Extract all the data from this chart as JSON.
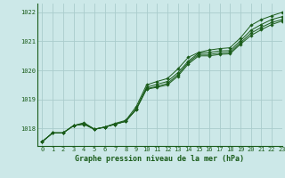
{
  "title": "Graphe pression niveau de la mer (hPa)",
  "background_color": "#cce8e8",
  "grid_color": "#aacccc",
  "line_color": "#1a5c1a",
  "marker_color": "#1a5c1a",
  "xlim": [
    -0.5,
    23
  ],
  "ylim": [
    1017.4,
    1022.3
  ],
  "yticks": [
    1018,
    1019,
    1020,
    1021,
    1022
  ],
  "xticks": [
    0,
    1,
    2,
    3,
    4,
    5,
    6,
    7,
    8,
    9,
    10,
    11,
    12,
    13,
    14,
    15,
    16,
    17,
    18,
    19,
    20,
    21,
    22,
    23
  ],
  "series": [
    [
      1017.55,
      1017.85,
      1017.85,
      1018.1,
      1018.2,
      1017.98,
      1018.05,
      1018.18,
      1018.28,
      1018.75,
      1019.5,
      1019.62,
      1019.72,
      1020.05,
      1020.45,
      1020.62,
      1020.7,
      1020.75,
      1020.78,
      1021.12,
      1021.55,
      1021.75,
      1021.88,
      1022.0
    ],
    [
      1017.55,
      1017.85,
      1017.85,
      1018.1,
      1018.18,
      1017.98,
      1018.05,
      1018.15,
      1018.25,
      1018.68,
      1019.42,
      1019.52,
      1019.62,
      1019.92,
      1020.32,
      1020.6,
      1020.62,
      1020.67,
      1020.68,
      1021.02,
      1021.38,
      1021.58,
      1021.75,
      1021.85
    ],
    [
      1017.55,
      1017.85,
      1017.85,
      1018.1,
      1018.15,
      1017.97,
      1018.05,
      1018.15,
      1018.25,
      1018.65,
      1019.37,
      1019.45,
      1019.55,
      1019.85,
      1020.27,
      1020.55,
      1020.55,
      1020.6,
      1020.62,
      1020.95,
      1021.28,
      1021.48,
      1021.65,
      1021.75
    ],
    [
      1017.55,
      1017.85,
      1017.85,
      1018.1,
      1018.15,
      1017.97,
      1018.05,
      1018.15,
      1018.25,
      1018.65,
      1019.35,
      1019.42,
      1019.5,
      1019.8,
      1020.22,
      1020.5,
      1020.5,
      1020.55,
      1020.57,
      1020.9,
      1021.2,
      1021.4,
      1021.58,
      1021.7
    ]
  ]
}
